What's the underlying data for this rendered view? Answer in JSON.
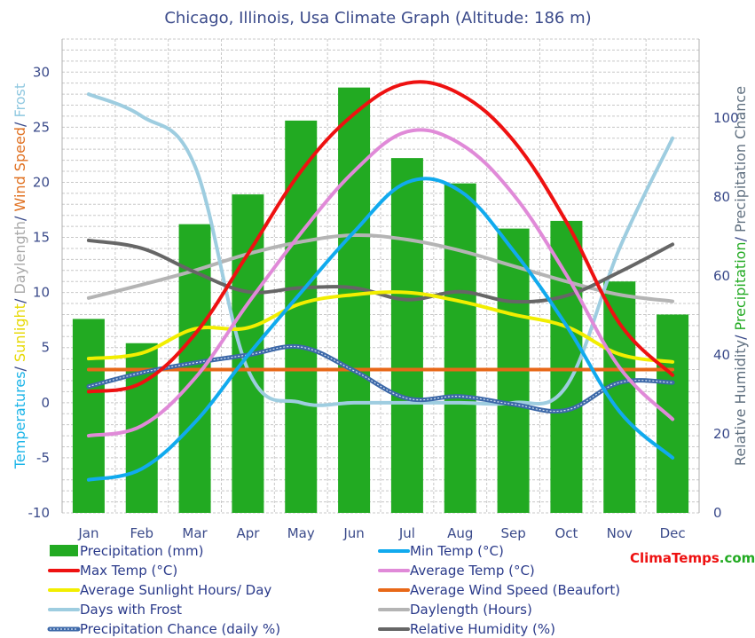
{
  "chart_data": {
    "type": "bar",
    "title": "Chicago, Illinois, Usa Climate Graph (Altitude: 186 m)",
    "categories": [
      "Jan",
      "Feb",
      "Mar",
      "Apr",
      "May",
      "Jun",
      "Jul",
      "Aug",
      "Sep",
      "Oct",
      "Nov",
      "Dec"
    ],
    "left_axis": {
      "ylim": [
        -10,
        33
      ],
      "ticks": [
        -10,
        -5,
        0,
        5,
        10,
        15,
        20,
        25,
        30
      ],
      "label_parts": [
        {
          "text": "Temperatures",
          "color": "#1ab4e8"
        },
        {
          "text": "/ ",
          "color": "#3a4a8a"
        },
        {
          "text": "Sunlight",
          "color": "#e6d800"
        },
        {
          "text": "/ ",
          "color": "#3a4a8a"
        },
        {
          "text": "Daylength",
          "color": "#a9a9a9"
        },
        {
          "text": "/ ",
          "color": "#3a4a8a"
        },
        {
          "text": "Wind Speed",
          "color": "#e07020"
        },
        {
          "text": "/ ",
          "color": "#3a4a8a"
        },
        {
          "text": "Frost",
          "color": "#8fc8e0"
        }
      ]
    },
    "right_axis": {
      "ylim": [
        0,
        120
      ],
      "ticks": [
        0,
        20,
        40,
        60,
        80,
        100
      ],
      "label_parts": [
        {
          "text": "Relative Humidity",
          "color": "#607080"
        },
        {
          "text": "/ ",
          "color": "#3a4a8a"
        },
        {
          "text": "Precipitation",
          "color": "#22aa22"
        },
        {
          "text": "/ ",
          "color": "#3a4a8a"
        },
        {
          "text": "Precipitation Chance",
          "color": "#607080"
        }
      ]
    },
    "grid": true,
    "series": [
      {
        "name": "Precipitation (mm)",
        "kind": "bar",
        "axis": "left",
        "color": "#22aa22",
        "values": [
          7.6,
          5.4,
          16.2,
          18.9,
          25.6,
          28.6,
          22.2,
          19.9,
          15.8,
          16.5,
          11.0,
          8.0
        ]
      },
      {
        "name": "Max Temp (°C)",
        "kind": "line",
        "axis": "left",
        "color": "#ee1111",
        "values": [
          1.0,
          1.8,
          6.2,
          13.5,
          21.0,
          26.2,
          29.0,
          28.0,
          23.8,
          16.4,
          7.2,
          2.5
        ]
      },
      {
        "name": "Min Temp (°C)",
        "kind": "line",
        "axis": "left",
        "color": "#11aaee",
        "values": [
          -7.0,
          -6.0,
          -1.8,
          4.3,
          10.0,
          15.5,
          20.0,
          19.2,
          13.8,
          7.0,
          -0.8,
          -5.0
        ]
      },
      {
        "name": "Average Temp (°C)",
        "kind": "line",
        "axis": "left",
        "color": "#e08ad8",
        "values": [
          -3.0,
          -2.1,
          2.2,
          9.0,
          15.4,
          21.0,
          24.6,
          23.5,
          18.9,
          11.6,
          3.2,
          -1.5
        ]
      },
      {
        "name": "Average Sunlight Hours/ Day",
        "kind": "line",
        "axis": "left",
        "color": "#f2ee00",
        "values": [
          4.0,
          4.5,
          6.7,
          6.8,
          9.0,
          9.8,
          10.0,
          9.2,
          8.0,
          6.9,
          4.4,
          3.7
        ]
      },
      {
        "name": "Average Wind Speed (Beaufort)",
        "kind": "line",
        "axis": "left",
        "color": "#e86818",
        "values": [
          3.0,
          3.0,
          3.0,
          3.0,
          3.0,
          3.0,
          3.0,
          3.0,
          3.0,
          3.0,
          3.0,
          3.0
        ]
      },
      {
        "name": "Days with Frost",
        "kind": "line",
        "axis": "left",
        "color": "#9ecde0",
        "values": [
          28.0,
          26.0,
          21.5,
          3.0,
          0.0,
          0.0,
          0.0,
          0.0,
          0.0,
          1.5,
          14.0,
          24.0
        ]
      },
      {
        "name": "Daylength (Hours)",
        "kind": "line",
        "axis": "left",
        "color": "#b4b4b4",
        "values": [
          9.5,
          10.7,
          12.0,
          13.5,
          14.6,
          15.2,
          14.8,
          13.8,
          12.4,
          11.0,
          9.8,
          9.2
        ]
      },
      {
        "name": "Precipitation Chance (daily %)",
        "kind": "line",
        "axis": "right",
        "color": "#3c68a8",
        "dashed": true,
        "values": [
          32.0,
          35.5,
          38.0,
          40.0,
          42.0,
          36.0,
          29.0,
          29.5,
          27.5,
          26.0,
          33.0,
          33.0
        ]
      },
      {
        "name": "Relative Humidity (%)",
        "kind": "line",
        "axis": "right",
        "color": "#666666",
        "values": [
          69.0,
          67.0,
          61.0,
          56.0,
          57.0,
          57.0,
          54.0,
          56.0,
          53.5,
          55.0,
          61.0,
          68.0
        ]
      }
    ],
    "legend_position": "bottom",
    "brand": {
      "part1": "Clima",
      "part2": "Temps",
      "part3": ".com",
      "color1": "#ee1111",
      "color2": "#ee1111",
      "color3": "#22aa22"
    }
  }
}
